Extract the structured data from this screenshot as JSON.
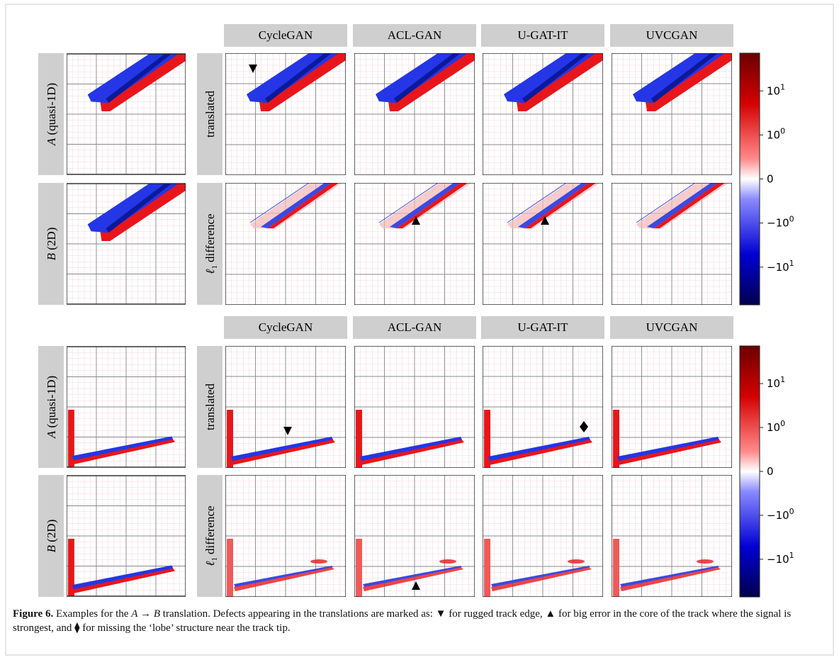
{
  "blocks": [
    {
      "columns": [
        "CycleGAN",
        "ACL-GAN",
        "U-GAT-IT",
        "UVCGAN"
      ],
      "rows": [
        {
          "label_var": "A",
          "label_text": "(quasi-1D)",
          "side_label": "translated"
        },
        {
          "label_var": "B",
          "label_text": "(2D)",
          "side_symbol": "ℓ",
          "side_sub": "1",
          "side_text": "difference"
        }
      ],
      "colorbar_ticks": [
        {
          "base": "10",
          "exp": "1"
        },
        {
          "base": "10",
          "exp": "0"
        },
        {
          "base": "0"
        },
        {
          "sign": "−",
          "base": "10",
          "exp": "0"
        },
        {
          "sign": "−",
          "base": "10",
          "exp": "1"
        }
      ]
    },
    {
      "columns": [
        "CycleGAN",
        "ACL-GAN",
        "U-GAT-IT",
        "UVCGAN"
      ],
      "rows": [
        {
          "label_var": "A",
          "label_text": "(quasi-1D)",
          "side_label": "translated"
        },
        {
          "label_var": "B",
          "label_text": "(2D)",
          "side_symbol": "ℓ",
          "side_sub": "1",
          "side_text": "difference"
        }
      ],
      "colorbar_ticks": [
        {
          "base": "10",
          "exp": "1"
        },
        {
          "base": "10",
          "exp": "0"
        },
        {
          "base": "0"
        },
        {
          "sign": "−",
          "base": "10",
          "exp": "0"
        },
        {
          "sign": "−",
          "base": "10",
          "exp": "1"
        }
      ]
    }
  ],
  "caption": {
    "label": "Figure 6.",
    "parts": [
      {
        "text": " Examples for the "
      },
      {
        "text": "A",
        "italic": true
      },
      {
        "text": " → "
      },
      {
        "text": "B",
        "italic": true
      },
      {
        "text": " translation. Defects appearing in the translations are marked as: ▼ for rugged track edge, ▲ for big error in the core of the track where the signal is strongest, and ⧫ for missing the ‘lobe’ structure near the track tip."
      }
    ]
  }
}
